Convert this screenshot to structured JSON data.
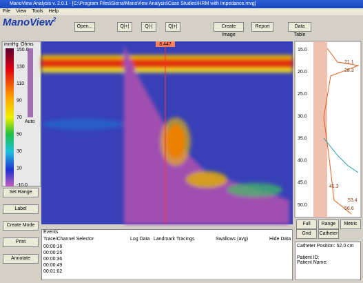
{
  "window": {
    "title": "ManoView Analysis v. 2.0.1 - [C:\\Program Files\\Sierra\\ManoView Analysis\\Case Studies\\HRM with Impedance.mvg]"
  },
  "menu": [
    "File",
    "View",
    "Tools",
    "Help"
  ],
  "logo": {
    "name": "ManoView",
    "version": "2"
  },
  "toolbar": [
    "Open...",
    "Q|+|",
    "Q|-|",
    "Q|+|",
    "Create Image",
    "Report",
    "Data Table"
  ],
  "scale": {
    "pressure_unit": "mmHg",
    "impedance_unit": "Ohms",
    "labels": [
      "150.0",
      "130",
      "110",
      "90",
      "70",
      "50",
      "30",
      "10",
      "-10.0"
    ],
    "impedance_auto": "Auto"
  },
  "left_buttons": [
    "Set Range",
    "Label",
    "Create Mode",
    "Print",
    "Annotate"
  ],
  "time_marker": "8.447",
  "depth_axis": {
    "labels": [
      "15.0",
      "20.0",
      "25.0",
      "30.0",
      "35.0",
      "40.0",
      "45.0",
      "50.0"
    ]
  },
  "pressure_labels": [
    "21.1",
    "28.3",
    "41.3",
    "53.4",
    "56.6"
  ],
  "right_buttons": [
    "Full Scale",
    "Range",
    "Metric",
    "Grid",
    "Catheter"
  ],
  "catheter_position": "Catheter Position: 52.0 cm",
  "patient": [
    "Patient ID:",
    "Patient Name:"
  ],
  "bottom": {
    "events": "Events",
    "selector": "Trace/Channel Selector",
    "log": "Log Data",
    "landmarks": "Landmark Tracings",
    "swallows": "Swallows (avg)",
    "hide": "Hide Data",
    "rows": [
      "00:00:16",
      "00:00:25",
      "00:00:36",
      "00:00:49",
      "00:01:02"
    ]
  }
}
